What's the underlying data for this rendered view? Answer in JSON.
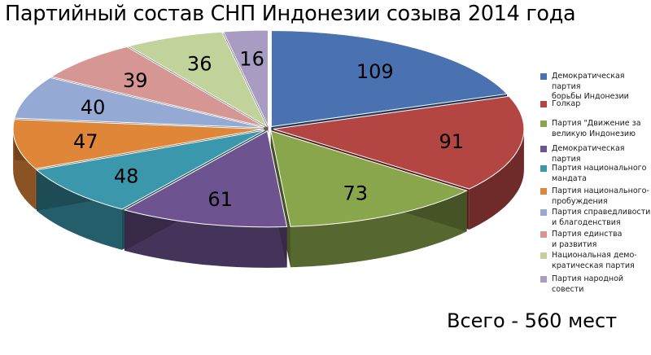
{
  "chart_data": {
    "type": "pie",
    "style": "3d-exploded",
    "title": "Партийный состав СНП Индонезии созыва 2014 года",
    "slices": [
      {
        "label": "Демократическая партия\nборьбы Индонезии",
        "value": 109,
        "color": "#4a72b0"
      },
      {
        "label": "Голкар",
        "value": 91,
        "color": "#b34542"
      },
      {
        "label": "Партия \"Движение за\nвеликую Индонезию",
        "value": 73,
        "color": "#8aa64c"
      },
      {
        "label": "Демократическая партия",
        "value": 61,
        "color": "#6d5490"
      },
      {
        "label": "Партия национального\nмандата",
        "value": 48,
        "color": "#3b97ac"
      },
      {
        "label": "Партия национального-\nпробуждения",
        "value": 47,
        "color": "#e08639"
      },
      {
        "label": "Партия справедливости\nи благоденствия",
        "value": 40,
        "color": "#94a9d3"
      },
      {
        "label": "Партия единства\n и развития",
        "value": 39,
        "color": "#d69694"
      },
      {
        "label": "Национальная демо-\nкратическая партия",
        "value": 36,
        "color": "#c1d39b"
      },
      {
        "label": "Партия народной совести",
        "value": 16,
        "color": "#a99cc3"
      }
    ],
    "legend_position": "right",
    "annotation": "Всего - 560 мест"
  }
}
